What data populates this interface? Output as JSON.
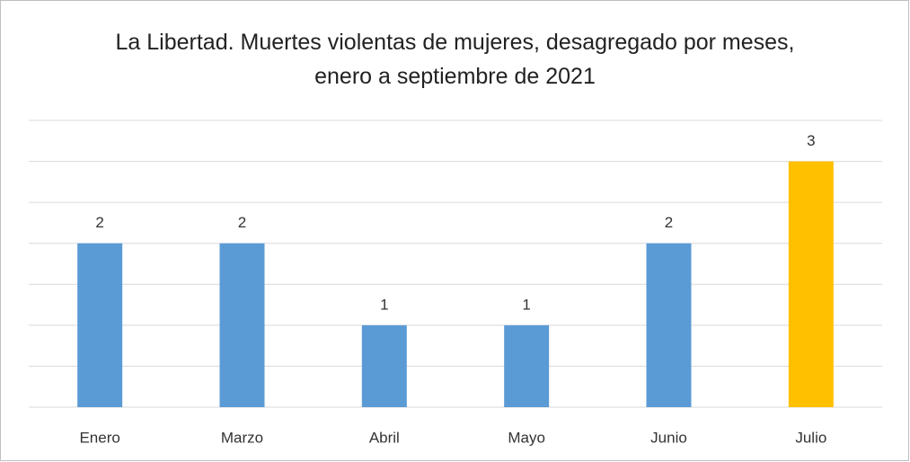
{
  "chart_data": {
    "type": "bar",
    "title": "La Libertad. Muertes violentas de mujeres, desagregado por meses, enero a septiembre de 2021",
    "categories": [
      "Enero",
      "Marzo",
      "Abril",
      "Mayo",
      "Junio",
      "Julio"
    ],
    "values": [
      2,
      2,
      1,
      1,
      2,
      3
    ],
    "colors": [
      "#5b9bd5",
      "#5b9bd5",
      "#5b9bd5",
      "#5b9bd5",
      "#5b9bd5",
      "#ffc000"
    ],
    "ylim": [
      0,
      3.5
    ],
    "yticks": [
      0,
      0.5,
      1,
      1.5,
      2,
      2.5,
      3,
      3.5
    ],
    "grid": true
  }
}
